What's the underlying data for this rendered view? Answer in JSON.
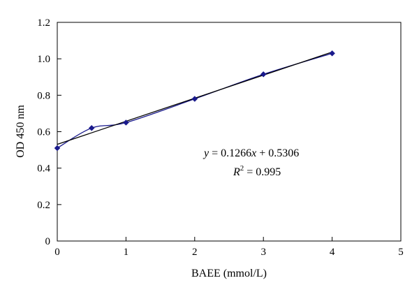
{
  "chart_data": {
    "type": "scatter",
    "title": "",
    "xlabel": "BAEE (mmol/L)",
    "ylabel": "OD 450 nm",
    "xlim": [
      0,
      5
    ],
    "ylim": [
      0,
      1.2
    ],
    "x_ticks": [
      "0",
      "1",
      "2",
      "3",
      "4",
      "5"
    ],
    "y_ticks": [
      "0",
      "0.2",
      "0.4",
      "0.6",
      "0.8",
      "1.0",
      "1.2"
    ],
    "grid": false,
    "series": [
      {
        "x": [
          0,
          0.5,
          1,
          2,
          3,
          4
        ],
        "y": [
          0.51,
          0.62,
          0.65,
          0.78,
          0.915,
          1.03
        ],
        "color": "#1a1a8c",
        "marker": "diamond",
        "line": "smooth"
      }
    ],
    "trendline": {
      "slope": 0.1266,
      "intercept": 0.5306,
      "x_range": [
        0,
        4
      ],
      "color": "#000000"
    },
    "annotation": {
      "equation": {
        "y": "y",
        "eq_mid": " = 0.1266",
        "x": "x",
        "eq_end": " + 0.5306"
      },
      "r2": {
        "R": "R",
        "sup": "2",
        "value": " = 0.995"
      }
    }
  }
}
